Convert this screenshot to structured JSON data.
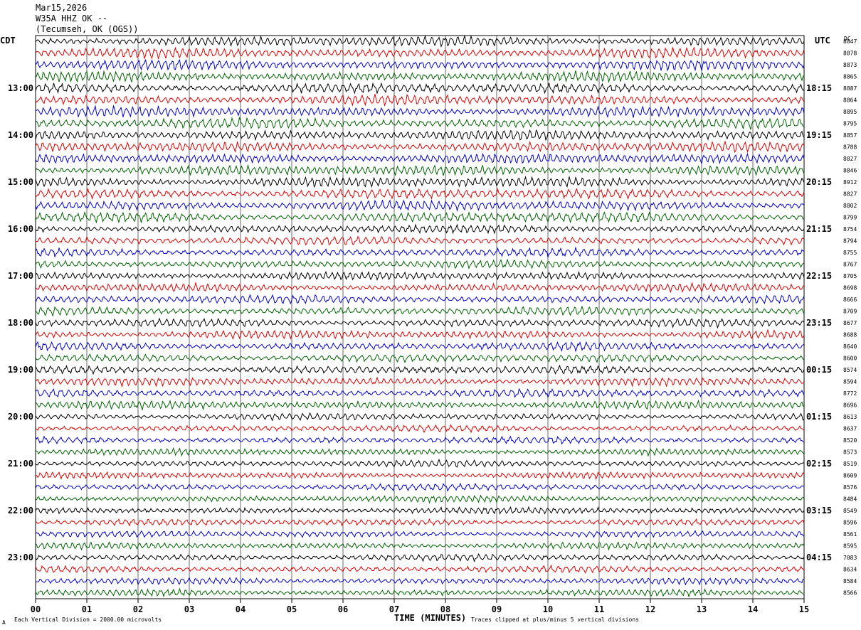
{
  "header": {
    "date": "Mar15,2026",
    "station": "W35A HHZ OK --",
    "location": "(Tecumseh, OK (OGS))"
  },
  "left_tz": "CDT",
  "right_tz": "UTC",
  "dc_header": "DC",
  "footer": {
    "scale": "Each Vertical Division = 2000.00 microvolts",
    "clip": "Traces clipped at plus/minus 5 vertical divisions",
    "corner": "A"
  },
  "chart_data": {
    "type": "line",
    "title": "W35A HHZ OK --",
    "xlabel": "TIME (MINUTES)",
    "xlim": [
      0,
      15
    ],
    "x_ticks": [
      "00",
      "01",
      "02",
      "03",
      "04",
      "05",
      "06",
      "07",
      "08",
      "09",
      "10",
      "11",
      "12",
      "13",
      "14",
      "15"
    ],
    "trace_colors": [
      "#000000",
      "#e00000",
      "#0000d0",
      "#006400"
    ],
    "left_labels": [
      "13:00",
      "14:00",
      "15:00",
      "16:00",
      "17:00",
      "18:00",
      "19:00",
      "20:00",
      "21:00",
      "22:00",
      "23:00"
    ],
    "right_labels": [
      "18:15",
      "19:15",
      "20:15",
      "21:15",
      "22:15",
      "23:15",
      "00:15",
      "01:15",
      "02:15",
      "03:15",
      "04:15"
    ],
    "dc_offsets": [
      "8847",
      "8878",
      "8873",
      "8865",
      "8887",
      "8864",
      "8895",
      "8795",
      "8857",
      "8788",
      "8827",
      "8846",
      "8912",
      "8827",
      "8802",
      "8799",
      "8754",
      "8794",
      "8755",
      "8767",
      "8705",
      "8698",
      "8666",
      "8709",
      "8677",
      "8688",
      "8640",
      "8600",
      "8574",
      "8594",
      "8772",
      "8696",
      "8613",
      "8637",
      "8520",
      "8573",
      "8519",
      "8609",
      "8576",
      "8484",
      "8549",
      "8596",
      "8561",
      "8595",
      "7083",
      "8634",
      "8584",
      "8566"
    ]
  }
}
